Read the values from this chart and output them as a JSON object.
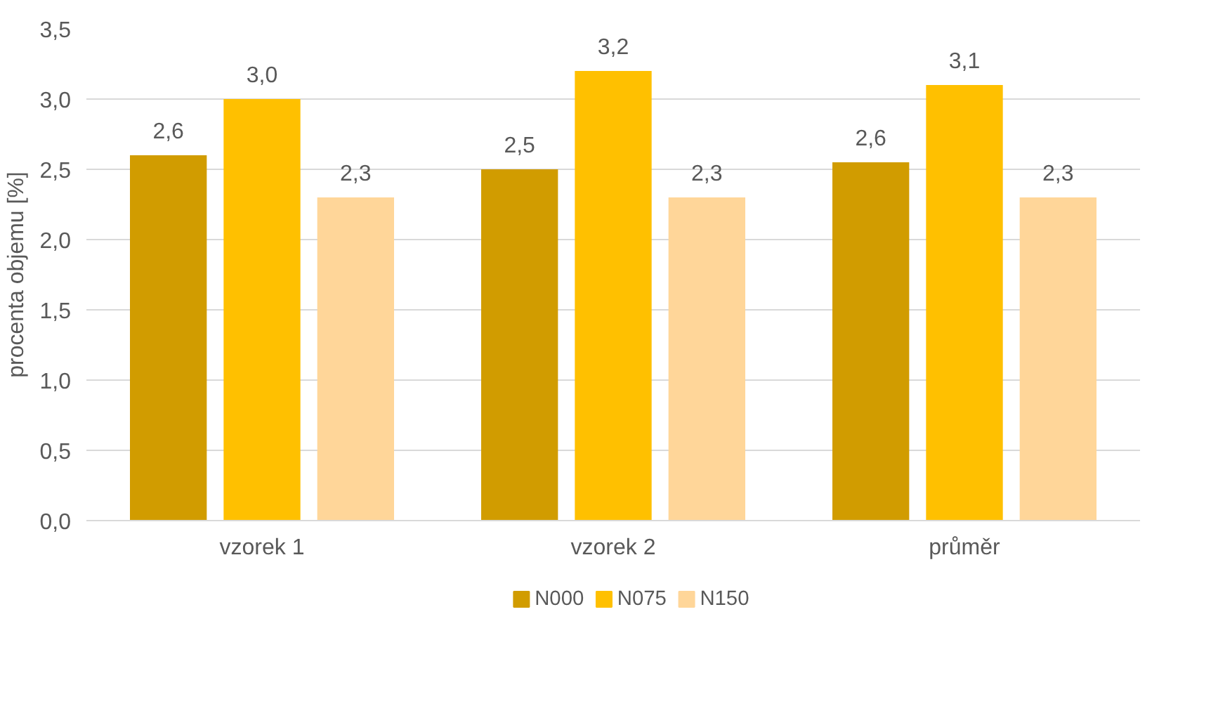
{
  "chart_data": {
    "type": "bar",
    "ylabel": "procenta objemu [%]",
    "categories": [
      "vzorek 1",
      "vzorek 2",
      "průměr"
    ],
    "series": [
      {
        "name": "N000",
        "color": "#d19c00",
        "values": [
          2.6,
          2.5,
          2.55
        ],
        "value_labels": [
          "2,6",
          "2,5",
          "2,6"
        ]
      },
      {
        "name": "N075",
        "color": "#ffc000",
        "values": [
          3.0,
          3.2,
          3.1
        ],
        "value_labels": [
          "3,0",
          "3,2",
          "3,1"
        ]
      },
      {
        "name": "N150",
        "color": "#ffd699",
        "values": [
          2.3,
          2.3,
          2.3
        ],
        "value_labels": [
          "2,3",
          "2,3",
          "2,3"
        ]
      }
    ],
    "ylim": [
      0,
      3.5
    ],
    "yticks": [
      {
        "value": 0,
        "label": "0,0"
      },
      {
        "value": 0.5,
        "label": "0,5"
      },
      {
        "value": 1,
        "label": "1,0"
      },
      {
        "value": 1.5,
        "label": "1,5"
      },
      {
        "value": 2,
        "label": "2,0"
      },
      {
        "value": 2.5,
        "label": "2,5"
      },
      {
        "value": 3,
        "label": "3,0"
      },
      {
        "value": 3.5,
        "label": "3,5"
      }
    ],
    "grid": "y",
    "legend": "bottom"
  }
}
